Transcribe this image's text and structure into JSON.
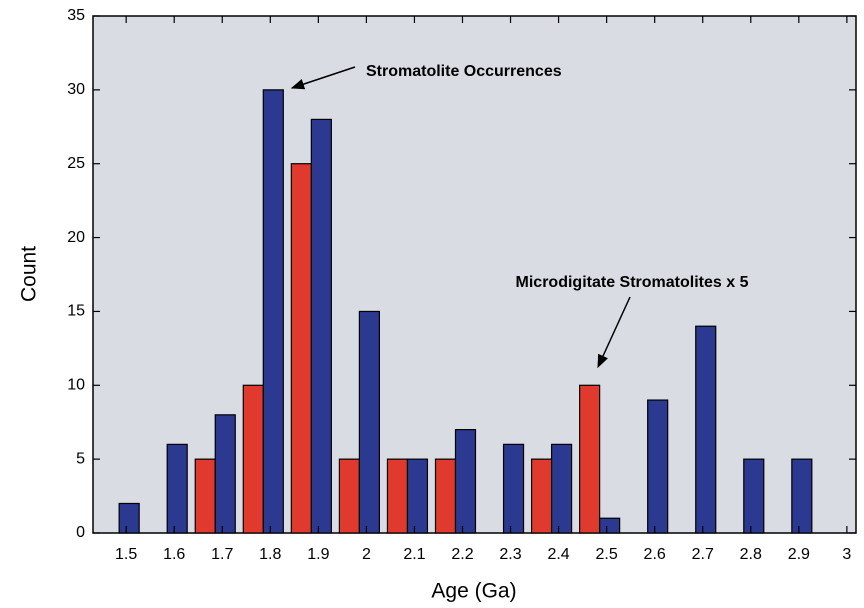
{
  "chart_data": {
    "type": "grouped-bar",
    "xlabel": "Age (Ga)",
    "ylabel": "Count",
    "x": [
      1.5,
      1.6,
      1.7,
      1.8,
      1.9,
      2.0,
      2.1,
      2.2,
      2.3,
      2.4,
      2.5,
      2.6,
      2.7,
      2.8,
      2.9
    ],
    "series": [
      {
        "name": "Microdigitate Stromatolites x 5",
        "color": "#e03a2e",
        "values": [
          0,
          0,
          5,
          10,
          25,
          5,
          5,
          5,
          0,
          5,
          10,
          0,
          0,
          0,
          0
        ]
      },
      {
        "name": "Stromatolite Occurrences",
        "color": "#2b3990",
        "values": [
          2,
          6,
          8,
          30,
          28,
          15,
          5,
          7,
          6,
          6,
          1,
          9,
          14,
          5,
          5
        ]
      }
    ],
    "xlim": [
      1.431,
      3.019
    ],
    "xticks": [
      1.5,
      1.6,
      1.7,
      1.8,
      1.9,
      2,
      2.1,
      2.2,
      2.3,
      2.4,
      2.5,
      2.6,
      2.7,
      2.8,
      2.9,
      3
    ],
    "ylim": [
      0,
      35
    ],
    "yticks": [
      0,
      5,
      10,
      15,
      20,
      25,
      30,
      35
    ],
    "background": "#d9dde3"
  }
}
